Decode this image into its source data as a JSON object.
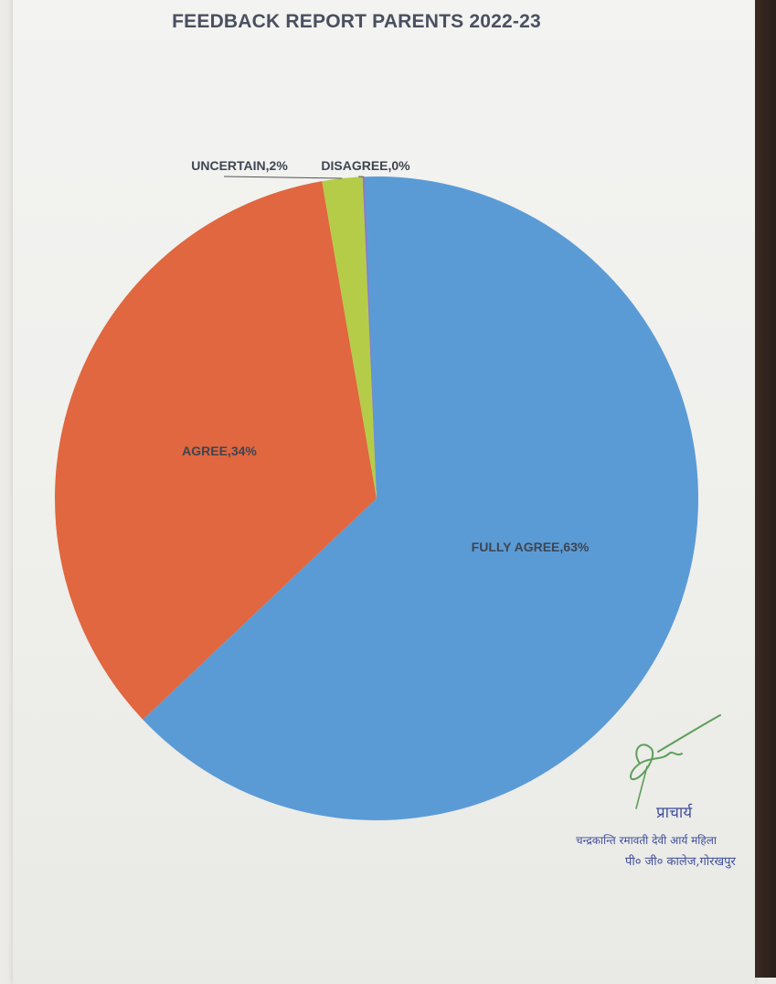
{
  "chart_data": {
    "type": "pie",
    "title": "FEEDBACK REPORT PARENTS 2022-23",
    "slices": [
      {
        "label": "FULLY AGREE",
        "value": 63,
        "display": "FULLY AGREE,63%",
        "color": "#5b9bd5"
      },
      {
        "label": "AGREE",
        "value": 34,
        "display": "AGREE,34%",
        "color": "#e0673f"
      },
      {
        "label": "UNCERTAIN",
        "value": 2,
        "display": "UNCERTAIN,2%",
        "color": "#b5cc48"
      },
      {
        "label": "DISAGREE",
        "value": 0,
        "display": "DISAGREE,0%",
        "color": "#8a7fc4"
      }
    ]
  },
  "signature": {
    "role": "प्राचार्य",
    "institution_line1": "चन्द्रकान्ति रमावती देवी आर्य महिला",
    "institution_line2": "पी० जी० कालेज,गोरखपुर"
  }
}
